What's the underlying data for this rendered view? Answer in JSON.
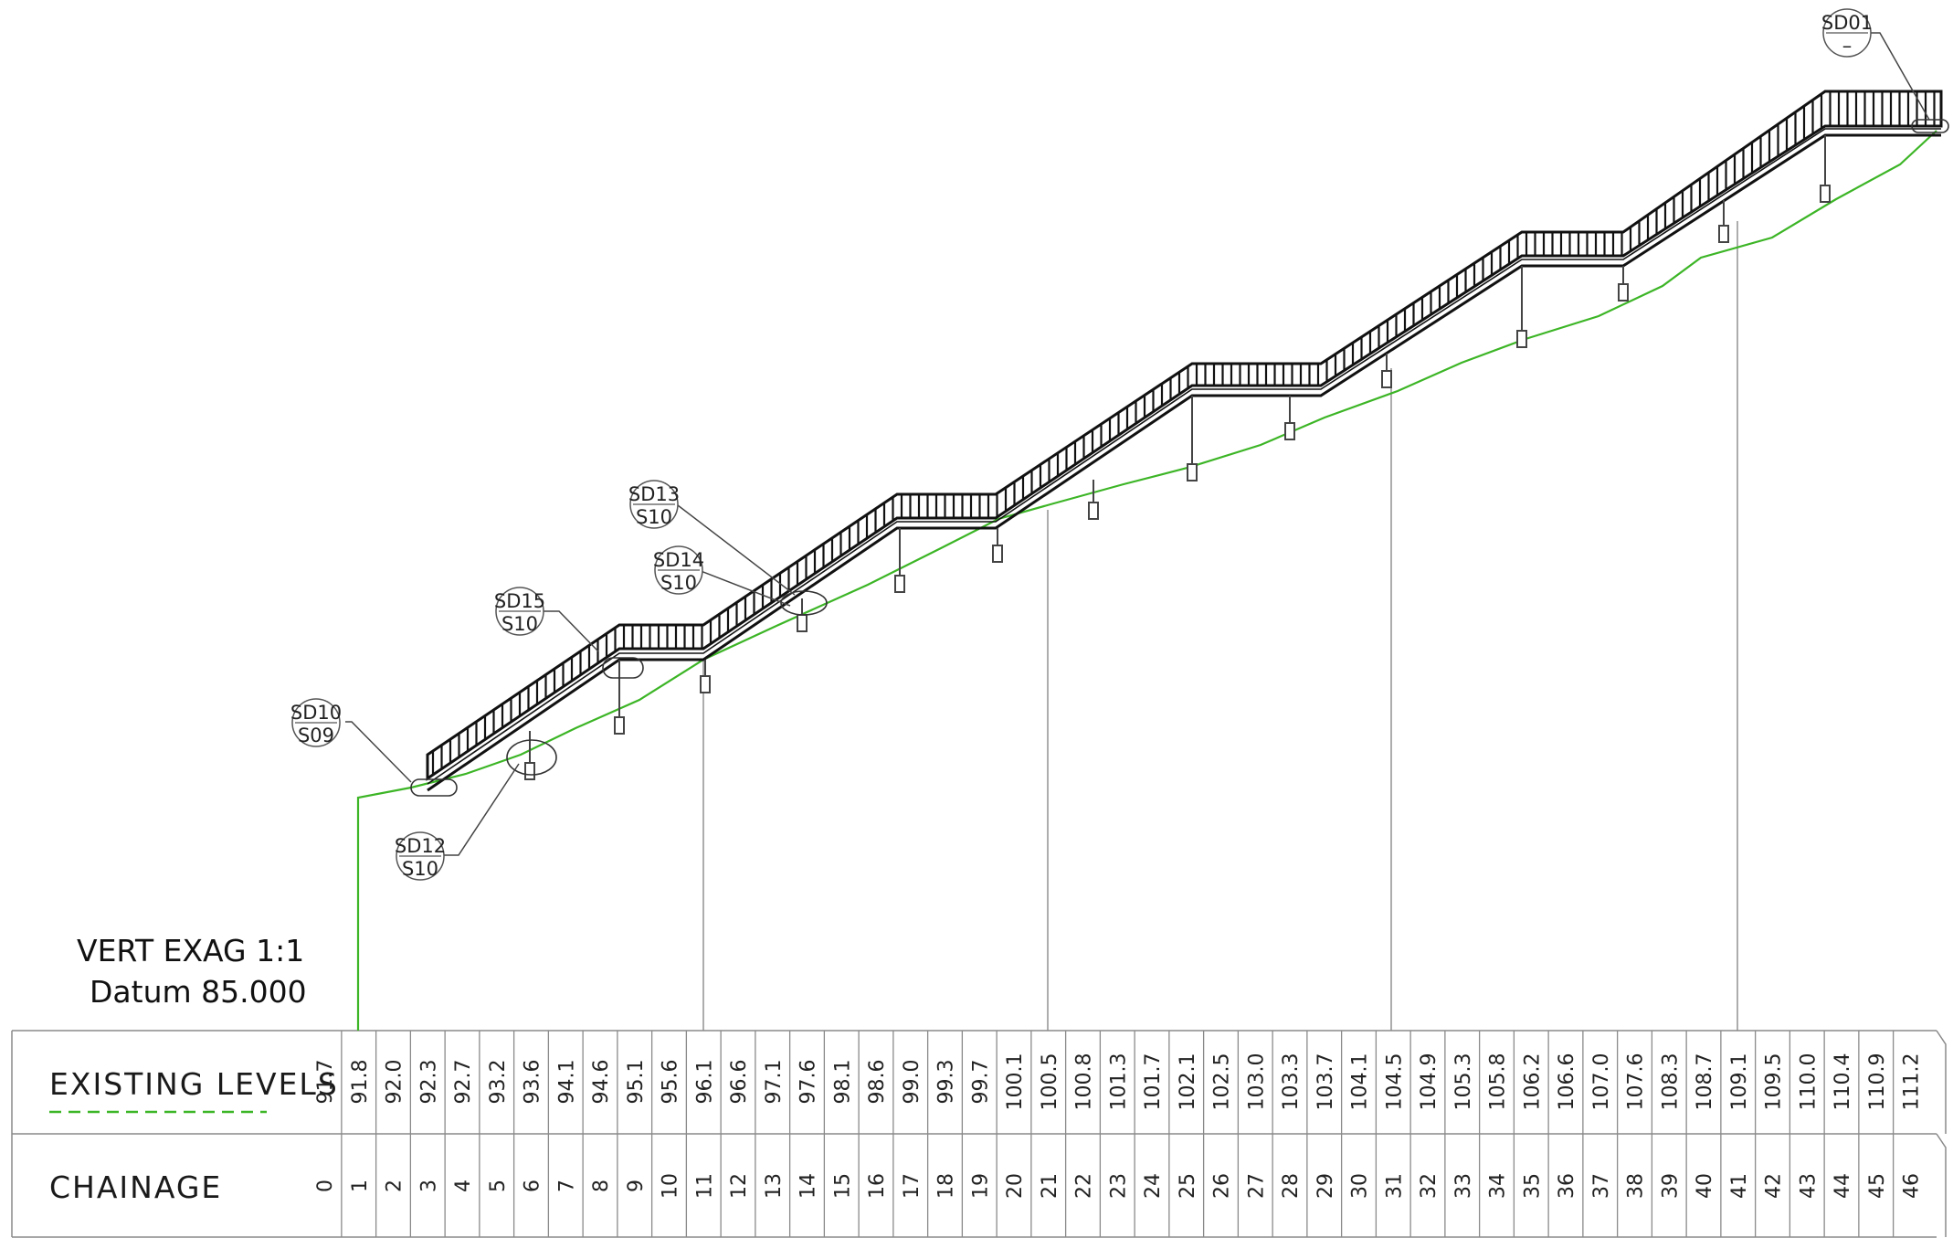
{
  "vert_exag_label": "VERT EXAG  1:1",
  "datum_label": "Datum 85.000",
  "existing_levels_label": "EXISTING LEVELS",
  "chainage_label": "CHAINAGE",
  "colors": {
    "ground_line": "#3cb526",
    "linework": "#111111",
    "grid": "#8a8a8a"
  },
  "section_tags": [
    {
      "top": "SD10",
      "bottom": "S09"
    },
    {
      "top": "SD12",
      "bottom": "S10"
    },
    {
      "top": "SD15",
      "bottom": "S10"
    },
    {
      "top": "SD14",
      "bottom": "S10"
    },
    {
      "top": "SD13",
      "bottom": "S10"
    },
    {
      "top": "SD01",
      "bottom": "–"
    }
  ],
  "table": {
    "chainage": [
      "0",
      "1",
      "2",
      "3",
      "4",
      "5",
      "6",
      "7",
      "8",
      "9",
      "10",
      "11",
      "12",
      "13",
      "14",
      "15",
      "16",
      "17",
      "18",
      "19",
      "20",
      "21",
      "22",
      "23",
      "24",
      "25",
      "26",
      "27",
      "28",
      "29",
      "30",
      "31",
      "32",
      "33",
      "34",
      "35",
      "36",
      "37",
      "38",
      "39",
      "40",
      "41",
      "42",
      "43",
      "44",
      "45",
      "46"
    ],
    "existing_levels": [
      "91.7",
      "91.8",
      "92.0",
      "92.3",
      "92.7",
      "93.2",
      "93.6",
      "94.1",
      "94.6",
      "95.1",
      "95.6",
      "96.1",
      "96.6",
      "97.1",
      "97.6",
      "98.1",
      "98.6",
      "99.0",
      "99.3",
      "99.7",
      "100.1",
      "100.5",
      "100.8",
      "101.3",
      "101.7",
      "102.1",
      "102.5",
      "103.0",
      "103.3",
      "103.7",
      "104.1",
      "104.5",
      "104.9",
      "105.3",
      "105.8",
      "106.2",
      "106.6",
      "107.0",
      "107.6",
      "108.3",
      "108.7",
      "109.1",
      "109.5",
      "110.0",
      "110.4",
      "110.9",
      "111.2"
    ]
  }
}
